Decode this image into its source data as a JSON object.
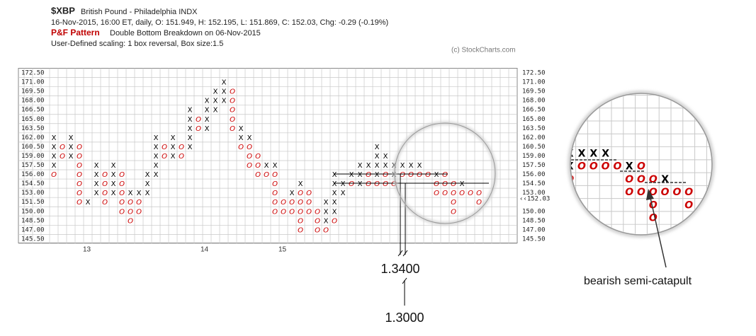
{
  "chart_data": {
    "type": "pnf",
    "title": "$XBP",
    "subtitle": "British Pound - Philadelphia  INDX",
    "info": "16-Nov-2015, 16:00 ET, daily, O: 151.949, H: 152.195, L: 151.869, C: 152.03, Chg: -0.29 (-0.19%)",
    "pattern_label": "P&F Pattern",
    "pattern": "Double Bottom Breakdown on 06-Nov-2015",
    "scaling": "User-Defined scaling: 1 box reversal, Box size:1.5",
    "credit": "(c) StockCharts.com",
    "box_size": 1.5,
    "ylim": [
      145.5,
      172.5
    ],
    "yticks": [
      {
        "value": 172.5,
        "label": "172.50"
      },
      {
        "value": 171,
        "label": "171.00"
      },
      {
        "value": 169.5,
        "label": "169.50"
      },
      {
        "value": 168,
        "label": "168.00"
      },
      {
        "value": 166.5,
        "label": "166.50"
      },
      {
        "value": 165,
        "label": "165.00"
      },
      {
        "value": 163.5,
        "label": "163.50"
      },
      {
        "value": 162,
        "label": "162.00"
      },
      {
        "value": 160.5,
        "label": "160.50"
      },
      {
        "value": 159,
        "label": "159.00"
      },
      {
        "value": 157.5,
        "label": "157.50"
      },
      {
        "value": 156,
        "label": "156.00"
      },
      {
        "value": 154.5,
        "label": "154.50"
      },
      {
        "value": 153,
        "label": "153.00"
      },
      {
        "value": 151.5,
        "label": "151.50"
      },
      {
        "value": 150,
        "label": "150.00"
      },
      {
        "value": 148.5,
        "label": "148.50"
      },
      {
        "value": 147,
        "label": "147.00"
      },
      {
        "value": 145.5,
        "label": "145.50"
      }
    ],
    "last": {
      "value": 152.03,
      "label": "‹‹152.03"
    },
    "grid": true,
    "colors": {
      "X": "#000000",
      "O": "#cc0000",
      "last": "#cc0000"
    },
    "year_labels": [
      "13",
      "14",
      "15"
    ],
    "annotations": [
      "1.3400",
      "1.3000",
      "bearish semi-catapult"
    ],
    "columns": [
      [
        {
          "mark": "X",
          "low": 157.5,
          "high": 162
        },
        {
          "mark": "O",
          "low": 156,
          "high": 156
        }
      ],
      [
        {
          "mark": "O",
          "low": 159,
          "high": 160.5
        }
      ],
      [
        {
          "mark": "X",
          "low": 159,
          "high": 162
        }
      ],
      [
        {
          "mark": "O",
          "low": 151.5,
          "high": 160.5
        }
      ],
      [
        {
          "mark": "X",
          "low": 151.5,
          "high": 151.5
        }
      ],
      [
        {
          "mark": "X",
          "low": 153,
          "high": 157.5
        }
      ],
      [
        {
          "mark": "O",
          "low": 151.5,
          "high": 156
        }
      ],
      [
        {
          "mark": "X",
          "low": 153,
          "high": 157.5
        }
      ],
      [
        {
          "mark": "O",
          "low": 150,
          "high": 156
        }
      ],
      [
        {
          "mark": "X",
          "low": 153,
          "high": 153
        },
        {
          "mark": "O",
          "low": 148.5,
          "high": 151.5
        }
      ],
      [
        {
          "mark": "X",
          "low": 153,
          "high": 153
        },
        {
          "mark": "O",
          "low": 150,
          "high": 151.5
        }
      ],
      [
        {
          "mark": "X",
          "low": 153,
          "high": 156
        }
      ],
      [
        {
          "mark": "X",
          "low": 156,
          "high": 162
        }
      ],
      [
        {
          "mark": "O",
          "low": 159,
          "high": 160.5
        }
      ],
      [
        {
          "mark": "X",
          "low": 159,
          "high": 162
        }
      ],
      [
        {
          "mark": "O",
          "low": 159,
          "high": 160.5
        }
      ],
      [
        {
          "mark": "X",
          "low": 160.5,
          "high": 166.5
        }
      ],
      [
        {
          "mark": "O",
          "low": 163.5,
          "high": 165
        }
      ],
      [
        {
          "mark": "X",
          "low": 163.5,
          "high": 168
        }
      ],
      [
        {
          "mark": "X",
          "low": 166.5,
          "high": 169.5
        }
      ],
      [
        {
          "mark": "X",
          "low": 168,
          "high": 171
        }
      ],
      [
        {
          "mark": "O",
          "low": 163.5,
          "high": 169.5
        }
      ],
      [
        {
          "mark": "X",
          "low": 162,
          "high": 163.5
        },
        {
          "mark": "O",
          "low": 160.5,
          "high": 160.5
        }
      ],
      [
        {
          "mark": "X",
          "low": 162,
          "high": 162
        },
        {
          "mark": "O",
          "low": 157.5,
          "high": 160.5
        }
      ],
      [
        {
          "mark": "O",
          "low": 156,
          "high": 159
        }
      ],
      [
        {
          "mark": "X",
          "low": 157.5,
          "high": 157.5
        },
        {
          "mark": "O",
          "low": 156,
          "high": 156
        }
      ],
      [
        {
          "mark": "X",
          "low": 157.5,
          "high": 157.5
        },
        {
          "mark": "O",
          "low": 150,
          "high": 156
        }
      ],
      [
        {
          "mark": "O",
          "low": 150,
          "high": 151.5
        }
      ],
      [
        {
          "mark": "X",
          "low": 153,
          "high": 153
        },
        {
          "mark": "O",
          "low": 150,
          "high": 151.5
        }
      ],
      [
        {
          "mark": "X",
          "low": 154.5,
          "high": 154.5
        },
        {
          "mark": "O",
          "low": 147,
          "high": 153
        }
      ],
      [
        {
          "mark": "O",
          "low": 150,
          "high": 153
        }
      ],
      [
        {
          "mark": "O",
          "low": 147,
          "high": 150
        }
      ],
      [
        {
          "mark": "X",
          "low": 148.5,
          "high": 151.5
        },
        {
          "mark": "O",
          "low": 147,
          "high": 147
        }
      ],
      [
        {
          "mark": "X",
          "low": 150,
          "high": 156
        },
        {
          "mark": "O",
          "low": 148.5,
          "high": 148.5
        }
      ],
      [
        {
          "mark": "X",
          "low": 153,
          "high": 154.5
        }
      ],
      [
        {
          "mark": "X",
          "low": 156,
          "high": 156
        },
        {
          "mark": "O",
          "low": 154.5,
          "high": 154.5
        }
      ],
      [
        {
          "mark": "X",
          "low": 154.5,
          "high": 157.5
        }
      ],
      [
        {
          "mark": "X",
          "low": 157.5,
          "high": 157.5
        },
        {
          "mark": "O",
          "low": 154.5,
          "high": 156
        }
      ],
      [
        {
          "mark": "X",
          "low": 156,
          "high": 160.5
        },
        {
          "mark": "O",
          "low": 154.5,
          "high": 154.5
        }
      ],
      [
        {
          "mark": "X",
          "low": 157.5,
          "high": 159
        },
        {
          "mark": "O",
          "low": 154.5,
          "high": 156
        }
      ],
      [
        {
          "mark": "X",
          "low": 156,
          "high": 157.5
        },
        {
          "mark": "O",
          "low": 154.5,
          "high": 154.5
        }
      ],
      [
        {
          "mark": "X",
          "low": 157.5,
          "high": 157.5
        },
        {
          "mark": "O",
          "low": 156,
          "high": 156
        }
      ],
      [
        {
          "mark": "O",
          "low": 156,
          "high": 156
        },
        {
          "mark": "X",
          "low": 157.5,
          "high": 157.5
        }
      ],
      [
        {
          "mark": "X",
          "low": 157.5,
          "high": 157.5
        },
        {
          "mark": "O",
          "low": 156,
          "high": 156
        }
      ],
      [
        {
          "mark": "O",
          "low": 156,
          "high": 156
        }
      ],
      [
        {
          "mark": "X",
          "low": 156,
          "high": 156
        },
        {
          "mark": "O",
          "low": 153,
          "high": 154.5
        }
      ],
      [
        {
          "mark": "O",
          "low": 153,
          "high": 156
        }
      ],
      [
        {
          "mark": "O",
          "low": 150,
          "high": 154.5
        }
      ],
      [
        {
          "mark": "X",
          "low": 154.5,
          "high": 154.5
        },
        {
          "mark": "O",
          "low": 153,
          "high": 153
        }
      ],
      [
        {
          "mark": "O",
          "low": 153,
          "high": 153
        }
      ],
      [
        {
          "mark": "O",
          "low": 151.5,
          "high": 153
        }
      ]
    ]
  }
}
